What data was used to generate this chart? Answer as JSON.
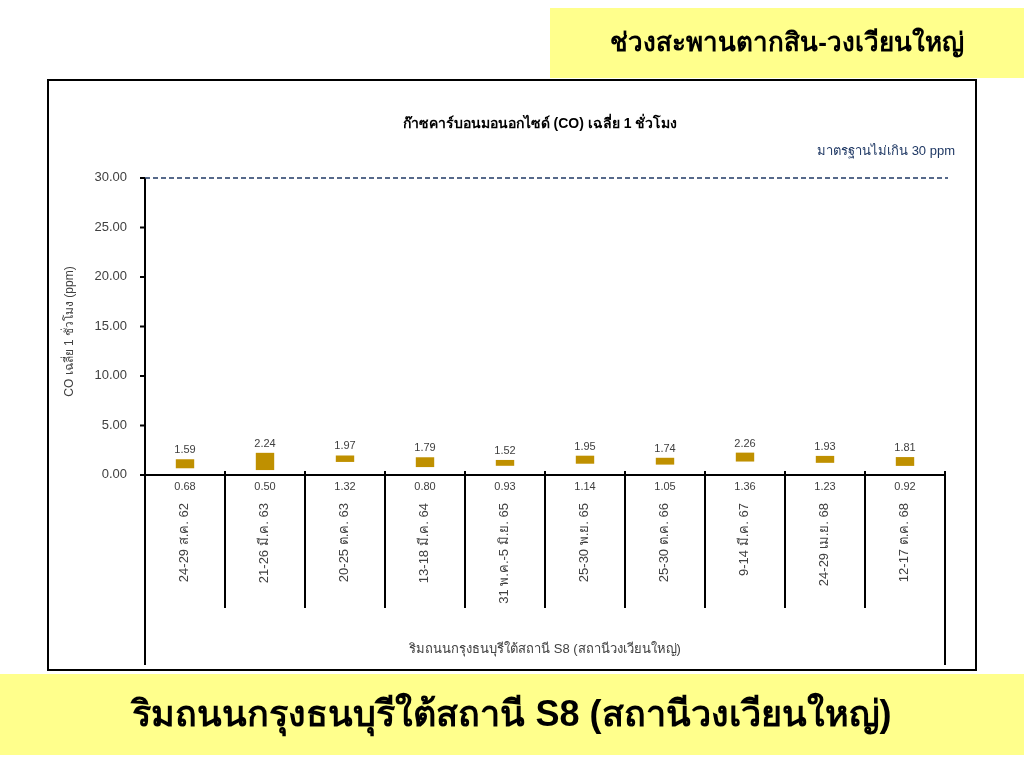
{
  "chart_data": {
    "type": "bar",
    "title": "ก๊าซคาร์บอนมอนอกไซด์ (CO) เฉลี่ย 1 ชั่วโมง",
    "xlabel": "ริมถนนกรุงธนบุรีใต้สถานี S8 (สถานีวงเวียนใหญ่)",
    "ylabel": "CO เฉลี่ย 1 ชั่วโมง (ppm)",
    "categories": [
      "24-29 ส.ค. 62",
      "21-26 มี.ค. 63",
      "20-25 ต.ค. 63",
      "13-18 มี.ค. 64",
      "31 พ.ค.-5 มิ.ย. 65",
      "25-30 พ.ย. 65",
      "25-30 ต.ค. 66",
      "9-14 มี.ค. 67",
      "24-29 เม.ย. 68",
      "12-17 ต.ค. 68"
    ],
    "base": [
      0.68,
      0.5,
      1.32,
      0.8,
      0.93,
      1.14,
      1.05,
      1.36,
      1.23,
      0.92
    ],
    "values": [
      0.91,
      1.74,
      0.65,
      0.99,
      0.59,
      0.81,
      0.69,
      0.9,
      0.7,
      0.89
    ],
    "color": "#bf9000",
    "ylim": [
      0,
      30
    ],
    "yticks": [
      {
        "value": 0,
        "label": "0.00"
      },
      {
        "value": 5,
        "label": "5.00"
      },
      {
        "value": 10,
        "label": "10.00"
      },
      {
        "value": 15,
        "label": "15.00"
      },
      {
        "value": 20,
        "label": "20.00"
      },
      {
        "value": 25,
        "label": "25.00"
      },
      {
        "value": 30,
        "label": "30.00"
      }
    ],
    "ref_lines": [
      {
        "axis": "y",
        "value": 30,
        "label": "มาตรฐานไม่เกิน 30 ppm",
        "color": "#1f3864",
        "line_style": "dashed"
      }
    ],
    "annotations": [
      "ช่วงสะพานตากสิน-วงเวียนใหญ่",
      "ริมถนนกรุงธนบุรีใต้สถานี S8 (สถานีวงเวียนใหญ่)",
      {
        "text": "1.59",
        "x": "24-29 ส.ค. 62",
        "y": 1.59
      },
      {
        "text": "0.68",
        "x": "24-29 ส.ค. 62",
        "y": 0.68
      },
      {
        "text": "2.24",
        "x": "21-26 มี.ค. 63",
        "y": 2.24
      },
      {
        "text": "0.50",
        "x": "21-26 มี.ค. 63",
        "y": 0.5
      },
      {
        "text": "1.97",
        "x": "20-25 ต.ค. 63",
        "y": 1.97
      },
      {
        "text": "1.32",
        "x": "20-25 ต.ค. 63",
        "y": 1.32
      },
      {
        "text": "1.79",
        "x": "13-18 มี.ค. 64",
        "y": 1.79
      },
      {
        "text": "0.80",
        "x": "13-18 มี.ค. 64",
        "y": 0.8
      },
      {
        "text": "1.52",
        "x": "31 พ.ค.-5 มิ.ย. 65",
        "y": 1.52
      },
      {
        "text": "0.93",
        "x": "31 พ.ค.-5 มิ.ย. 65",
        "y": 0.93
      },
      {
        "text": "1.95",
        "x": "25-30 พ.ย. 65",
        "y": 1.95
      },
      {
        "text": "1.14",
        "x": "25-30 พ.ย. 65",
        "y": 1.14
      },
      {
        "text": "1.74",
        "x": "25-30 ต.ค. 66",
        "y": 1.74
      },
      {
        "text": "1.05",
        "x": "25-30 ต.ค. 66",
        "y": 1.05
      },
      {
        "text": "2.26",
        "x": "9-14 มี.ค. 67",
        "y": 2.26
      },
      {
        "text": "1.36",
        "x": "9-14 มี.ค. 67",
        "y": 1.36
      },
      {
        "text": "1.93",
        "x": "24-29 เม.ย. 68",
        "y": 1.93
      },
      {
        "text": "1.23",
        "x": "24-29 เม.ย. 68",
        "y": 1.23
      },
      {
        "text": "1.81",
        "x": "12-17 ต.ค. 68",
        "y": 1.81
      },
      {
        "text": "0.92",
        "x": "12-17 ต.ค. 68",
        "y": 0.92
      }
    ]
  }
}
